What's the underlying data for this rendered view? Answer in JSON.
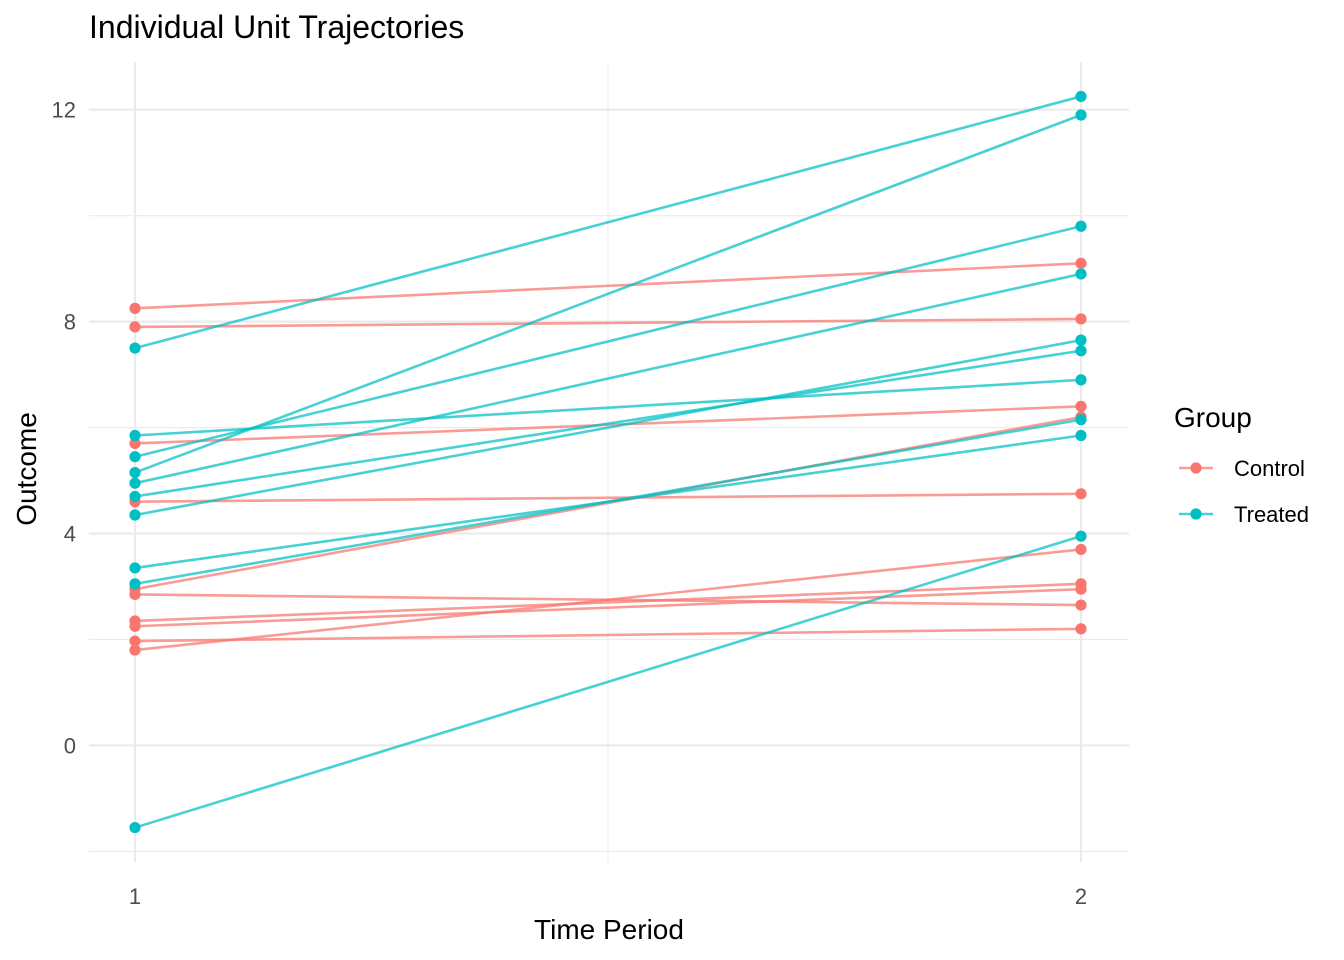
{
  "chart_data": {
    "type": "line",
    "title": "Individual Unit Trajectories",
    "xlabel": "Time Period",
    "ylabel": "Outcome",
    "x_categories": [
      "1",
      "2"
    ],
    "y_ticks": [
      0,
      4,
      8,
      12
    ],
    "ylim": [
      -2.2,
      12.9
    ],
    "grid": true,
    "legend": {
      "title": "Group",
      "position": "right",
      "items": [
        {
          "label": "Control",
          "color": "#F8766D"
        },
        {
          "label": "Treated",
          "color": "#00BFC4"
        }
      ]
    },
    "series": [
      {
        "group": "Control",
        "values": [
          8.25,
          9.1
        ]
      },
      {
        "group": "Control",
        "values": [
          7.9,
          8.05
        ]
      },
      {
        "group": "Control",
        "values": [
          5.7,
          6.4
        ]
      },
      {
        "group": "Control",
        "values": [
          4.6,
          4.75
        ]
      },
      {
        "group": "Control",
        "values": [
          2.95,
          6.2
        ]
      },
      {
        "group": "Control",
        "values": [
          2.85,
          2.65
        ]
      },
      {
        "group": "Control",
        "values": [
          2.35,
          3.05
        ]
      },
      {
        "group": "Control",
        "values": [
          2.25,
          2.95
        ]
      },
      {
        "group": "Control",
        "values": [
          1.97,
          2.2
        ]
      },
      {
        "group": "Control",
        "values": [
          1.8,
          3.7
        ]
      },
      {
        "group": "Treated",
        "values": [
          7.5,
          12.25
        ]
      },
      {
        "group": "Treated",
        "values": [
          5.85,
          6.9
        ]
      },
      {
        "group": "Treated",
        "values": [
          5.45,
          9.8
        ]
      },
      {
        "group": "Treated",
        "values": [
          5.15,
          11.9
        ]
      },
      {
        "group": "Treated",
        "values": [
          4.95,
          8.9
        ]
      },
      {
        "group": "Treated",
        "values": [
          4.7,
          7.45
        ]
      },
      {
        "group": "Treated",
        "values": [
          4.35,
          7.65
        ]
      },
      {
        "group": "Treated",
        "values": [
          3.35,
          5.85
        ]
      },
      {
        "group": "Treated",
        "values": [
          3.05,
          6.15
        ]
      },
      {
        "group": "Treated",
        "values": [
          -1.55,
          3.95
        ]
      }
    ]
  }
}
